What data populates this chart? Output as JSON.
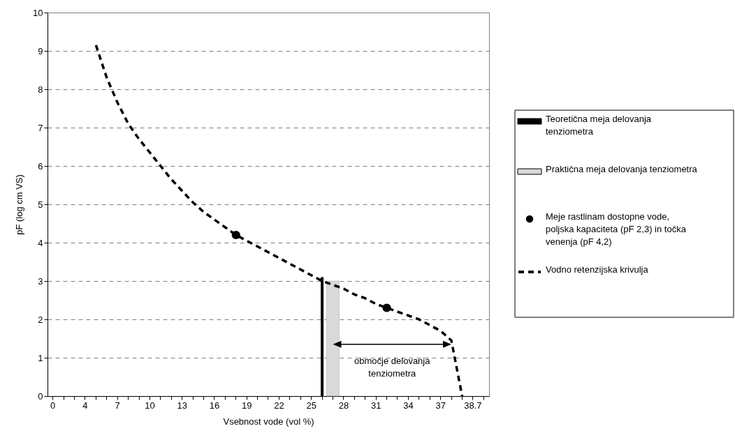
{
  "chart_data": {
    "type": "line",
    "xlabel": "Vsebnost vode (vol %)",
    "ylabel": "pF (log cm VS)",
    "categories": [
      "0",
      null,
      null,
      "4",
      null,
      null,
      "7",
      null,
      null,
      "10",
      null,
      null,
      "13",
      null,
      null,
      "16",
      null,
      null,
      "19",
      null,
      null,
      "22",
      null,
      null,
      "25",
      null,
      null,
      "28",
      null,
      null,
      "31",
      null,
      null,
      "34",
      null,
      null,
      "37",
      null,
      null,
      "38.7",
      null
    ],
    "ylim": [
      0,
      10
    ],
    "yticks": [
      0,
      1,
      2,
      3,
      4,
      5,
      6,
      7,
      8,
      9,
      10
    ],
    "grid": "y",
    "legend": "right",
    "series": [
      {
        "name": "Teoretična meja delovanja tenziometra",
        "type": "bar",
        "color": "#000000",
        "values": [
          null,
          null,
          null,
          null,
          null,
          null,
          null,
          null,
          null,
          null,
          null,
          null,
          null,
          null,
          null,
          null,
          null,
          null,
          null,
          null,
          null,
          null,
          null,
          null,
          null,
          3.1,
          null,
          null,
          null,
          null,
          null,
          null,
          null,
          null,
          null,
          null,
          null,
          null,
          null,
          null,
          null
        ]
      },
      {
        "name": "Praktična meja delovanja tenziometra",
        "type": "bar",
        "color": "#d9d9d9",
        "values": [
          null,
          null,
          null,
          null,
          null,
          null,
          null,
          null,
          null,
          null,
          null,
          null,
          null,
          null,
          null,
          null,
          null,
          null,
          null,
          null,
          null,
          null,
          null,
          null,
          null,
          null,
          3.0,
          null,
          null,
          null,
          null,
          null,
          null,
          null,
          null,
          null,
          null,
          null,
          null,
          null,
          null
        ]
      },
      {
        "name": "Meje rastlinam dostopne vode, poljska kapaciteta (pF 2,3) in točka venenja (pF 4,2)",
        "type": "scatter",
        "marker": "circle",
        "color": "#000000",
        "values": [
          null,
          null,
          null,
          null,
          null,
          null,
          null,
          null,
          null,
          null,
          null,
          null,
          null,
          null,
          null,
          null,
          null,
          4.2,
          null,
          null,
          null,
          null,
          null,
          null,
          null,
          null,
          null,
          null,
          null,
          null,
          null,
          2.3,
          null,
          null,
          null,
          null,
          null,
          null,
          null,
          null,
          null
        ]
      },
      {
        "name": "Vodno retenzijska krivulja",
        "line_style": "dashed",
        "color": "#000000",
        "values": [
          null,
          null,
          null,
          null,
          9.15,
          8.3,
          7.65,
          7.1,
          6.7,
          6.35,
          6.0,
          5.65,
          5.35,
          5.05,
          4.8,
          4.6,
          4.4,
          4.2,
          4.05,
          3.9,
          3.75,
          3.6,
          3.45,
          3.3,
          3.15,
          3.0,
          2.9,
          2.8,
          2.65,
          2.55,
          2.4,
          2.3,
          2.2,
          2.1,
          2.0,
          1.85,
          1.7,
          1.45,
          0,
          null,
          null
        ]
      }
    ],
    "annotations": [
      "območje delovanja tenziometra"
    ]
  }
}
